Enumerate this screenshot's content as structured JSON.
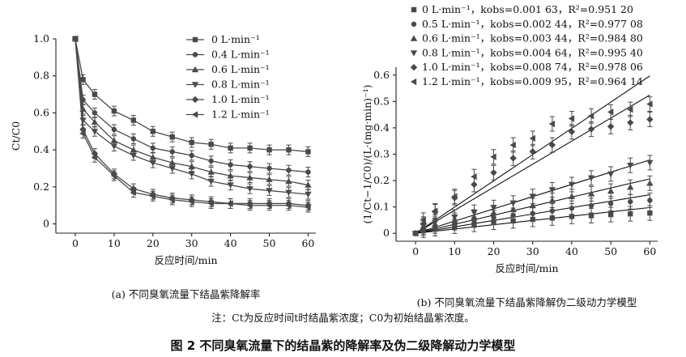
{
  "charts": [
    {
      "id": "a",
      "title": "(a) 不同臭氧流量下结晶紫降解率",
      "xlabel": "反应时间/min",
      "ylabel": "Ct/C0",
      "xlim": [
        -5,
        62
      ],
      "ylim": [
        -0.05,
        1.0
      ],
      "xticks": [
        0,
        10,
        20,
        30,
        40,
        50,
        60
      ],
      "yticks": [
        0,
        0.2,
        0.4,
        0.6,
        0.8,
        1.0
      ],
      "xtick_labels": [
        "0",
        "10",
        "20",
        "30",
        "40",
        "50",
        "60"
      ],
      "ytick_labels": [
        "0",
        "0.2",
        "0.4",
        "0.6",
        "0.8",
        "1.0"
      ],
      "series": [
        {
          "name": "0 L·min⁻¹",
          "marker": "square",
          "x": [
            0,
            2,
            5,
            10,
            15,
            20,
            25,
            30,
            35,
            40,
            45,
            50,
            55,
            60
          ],
          "y": [
            1.0,
            0.78,
            0.7,
            0.61,
            0.56,
            0.5,
            0.47,
            0.44,
            0.43,
            0.41,
            0.41,
            0.4,
            0.4,
            0.39
          ]
        },
        {
          "name": "0.4 L·min⁻¹",
          "marker": "circle",
          "x": [
            0,
            2,
            5,
            10,
            15,
            20,
            25,
            30,
            35,
            40,
            45,
            50,
            55,
            60
          ],
          "y": [
            1.0,
            0.67,
            0.6,
            0.51,
            0.46,
            0.41,
            0.39,
            0.37,
            0.34,
            0.32,
            0.31,
            0.3,
            0.29,
            0.28
          ]
        },
        {
          "name": "0.6 L·min⁻¹",
          "marker": "triangle-up",
          "x": [
            0,
            2,
            5,
            10,
            15,
            20,
            25,
            30,
            35,
            40,
            45,
            50,
            55,
            60
          ],
          "y": [
            1.0,
            0.62,
            0.55,
            0.45,
            0.4,
            0.36,
            0.33,
            0.31,
            0.28,
            0.26,
            0.25,
            0.24,
            0.23,
            0.21
          ]
        },
        {
          "name": "0.8 L·min⁻¹",
          "marker": "triangle-down",
          "x": [
            0,
            2,
            5,
            10,
            15,
            20,
            25,
            30,
            35,
            40,
            45,
            50,
            55,
            60
          ],
          "y": [
            1.0,
            0.56,
            0.5,
            0.42,
            0.37,
            0.33,
            0.3,
            0.27,
            0.23,
            0.21,
            0.19,
            0.18,
            0.17,
            0.16
          ]
        },
        {
          "name": "1.0 L·min⁻¹",
          "marker": "diamond",
          "x": [
            0,
            2,
            5,
            10,
            15,
            20,
            25,
            30,
            35,
            40,
            45,
            50,
            55,
            60
          ],
          "y": [
            1.0,
            0.51,
            0.38,
            0.27,
            0.19,
            0.16,
            0.14,
            0.13,
            0.12,
            0.11,
            0.11,
            0.11,
            0.11,
            0.1
          ]
        },
        {
          "name": "1.2 L·min⁻¹",
          "marker": "triangle-left",
          "x": [
            0,
            2,
            5,
            10,
            15,
            20,
            25,
            30,
            35,
            40,
            45,
            50,
            55,
            60
          ],
          "y": [
            1.0,
            0.49,
            0.36,
            0.26,
            0.17,
            0.15,
            0.13,
            0.12,
            0.11,
            0.11,
            0.1,
            0.1,
            0.1,
            0.09
          ]
        }
      ]
    },
    {
      "id": "b",
      "title": "(b) 不同臭氧流量下结晶紫降解伪二级动力学模型",
      "xlabel": "反应时间/min",
      "ylabel": "(1/Ct−1/C0)/(L·(mg·min)⁻¹)",
      "xlim": [
        -5,
        62
      ],
      "ylim": [
        -0.03,
        0.63
      ],
      "xticks": [
        0,
        10,
        20,
        30,
        40,
        50,
        60
      ],
      "yticks": [
        0,
        0.1,
        0.2,
        0.3,
        0.4,
        0.5,
        0.6
      ],
      "xtick_labels": [
        "0",
        "10",
        "20",
        "30",
        "40",
        "50",
        "60"
      ],
      "ytick_labels": [
        "0",
        "0.1",
        "0.2",
        "0.3",
        "0.4",
        "0.5",
        "0.6"
      ],
      "series": [
        {
          "name": "0 L·min⁻¹",
          "k_obs": "kobs=0.001 63",
          "r2": "R²=0.951 20",
          "k": 0.00163,
          "marker": "square",
          "x": [
            0,
            2,
            5,
            10,
            15,
            20,
            25,
            30,
            35,
            40,
            45,
            50,
            55,
            60
          ],
          "y": [
            0,
            0.012,
            0.018,
            0.027,
            0.034,
            0.042,
            0.047,
            0.053,
            0.058,
            0.064,
            0.067,
            0.071,
            0.074,
            0.077
          ]
        },
        {
          "name": "0.5 L·min⁻¹",
          "k_obs": "kobs=0.002 44",
          "r2": "R²=0.977 08",
          "k": 0.00244,
          "marker": "circle",
          "x": [
            0,
            2,
            5,
            10,
            15,
            20,
            25,
            30,
            35,
            40,
            45,
            50,
            55,
            60
          ],
          "y": [
            0,
            0.02,
            0.028,
            0.04,
            0.05,
            0.06,
            0.068,
            0.075,
            0.085,
            0.095,
            0.105,
            0.113,
            0.12,
            0.125
          ]
        },
        {
          "name": "0.6 L·min⁻¹",
          "k_obs": "kobs=0.003 44",
          "r2": "R²=0.984 80",
          "k": 0.00344,
          "marker": "triangle-up",
          "x": [
            0,
            2,
            5,
            10,
            15,
            20,
            25,
            30,
            35,
            40,
            45,
            50,
            55,
            60
          ],
          "y": [
            0,
            0.025,
            0.035,
            0.05,
            0.062,
            0.078,
            0.09,
            0.105,
            0.125,
            0.14,
            0.15,
            0.16,
            0.175,
            0.19
          ]
        },
        {
          "name": "0.8 L·min⁻¹",
          "k_obs": "kobs=0.004 64",
          "r2": "R²=0.995 40",
          "k": 0.00464,
          "marker": "triangle-down",
          "x": [
            0,
            2,
            5,
            10,
            15,
            20,
            25,
            30,
            35,
            40,
            45,
            50,
            55,
            60
          ],
          "y": [
            0,
            0.03,
            0.042,
            0.062,
            0.08,
            0.098,
            0.115,
            0.14,
            0.165,
            0.185,
            0.21,
            0.225,
            0.258,
            0.268
          ]
        },
        {
          "name": "1.0 L·min⁻¹",
          "k_obs": "kobs=0.008 74",
          "r2": "R²=0.978 06",
          "k": 0.00874,
          "marker": "diamond",
          "x": [
            0,
            2,
            5,
            10,
            15,
            20,
            25,
            30,
            35,
            40,
            45,
            50,
            55,
            60
          ],
          "y": [
            0,
            0.035,
            0.082,
            0.135,
            0.185,
            0.23,
            0.285,
            0.31,
            0.335,
            0.385,
            0.395,
            0.405,
            0.42,
            0.432
          ]
        },
        {
          "name": "1.2 L·min⁻¹",
          "k_obs": "kobs=0.009 95",
          "r2": "R²=0.964 14",
          "k": 0.00995,
          "marker": "triangle-left",
          "x": [
            0,
            2,
            5,
            10,
            15,
            20,
            25,
            30,
            35,
            40,
            45,
            50,
            55,
            60
          ],
          "y": [
            0,
            0.05,
            0.085,
            0.14,
            0.215,
            0.29,
            0.335,
            0.36,
            0.415,
            0.435,
            0.445,
            0.46,
            0.47,
            0.49
          ]
        }
      ]
    }
  ],
  "note": "注：Ct为反应时间t时结晶紫浓度；C0为初始结晶紫浓度。",
  "caption": "图 2   不同臭氧流量下的结晶紫的降解率及伪二级降解动力学模型",
  "colors": {
    "marker": "#4a4a4a",
    "axis": "#222222",
    "fit": "#111111"
  }
}
